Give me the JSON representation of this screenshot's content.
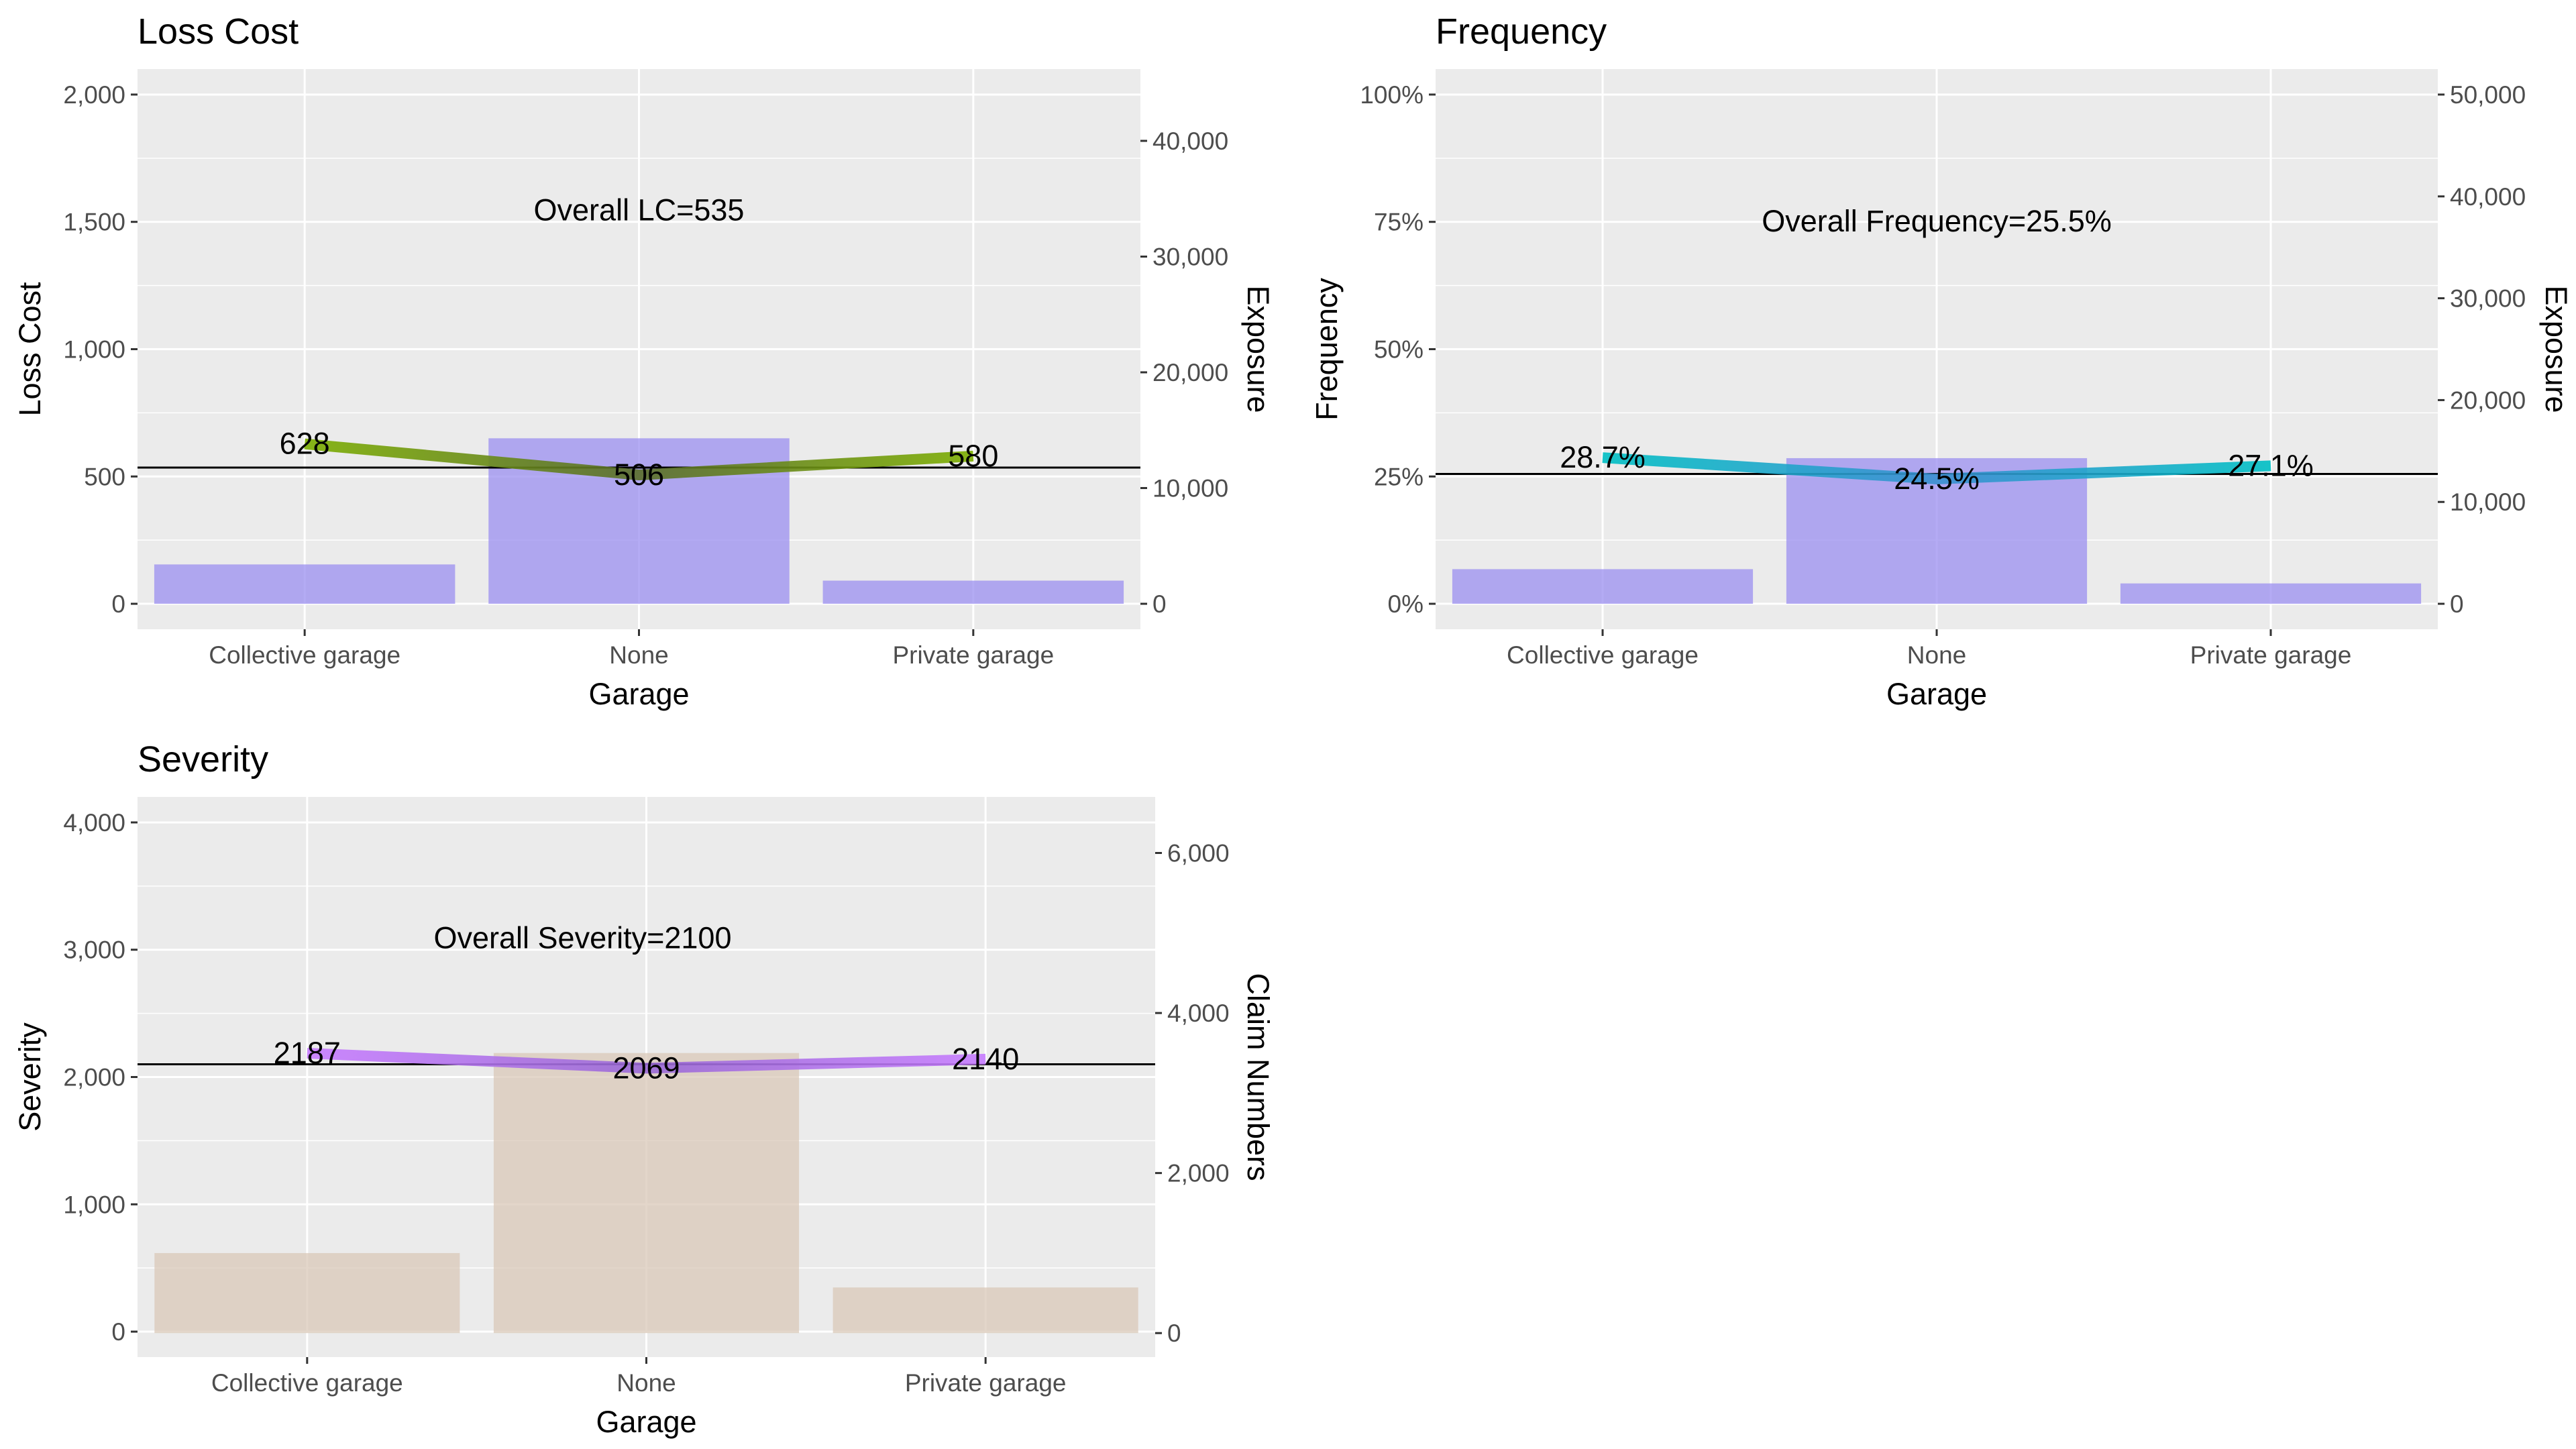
{
  "charts": [
    {
      "id": "loss-cost",
      "type": "bar+line",
      "title": "Loss Cost",
      "xlabel": "Garage",
      "ylabel": "Loss Cost",
      "y2label": "Exposure",
      "categories": [
        "Collective garage",
        "None",
        "Private garage"
      ],
      "ylim": [
        -100,
        2100
      ],
      "yticks": [
        0,
        500,
        1000,
        1500,
        2000
      ],
      "ytick_labels": [
        "0",
        "500",
        "1,000",
        "1,500",
        "2,000"
      ],
      "y2lim": [
        -2200,
        46200
      ],
      "y2ticks": [
        0,
        10000,
        20000,
        30000,
        40000
      ],
      "y2tick_labels": [
        "0",
        "10,000",
        "20,000",
        "30,000",
        "40,000"
      ],
      "bars": [
        3400,
        14300,
        2000
      ],
      "line": [
        628,
        506,
        580
      ],
      "line_labels": [
        "628",
        "506",
        "580"
      ],
      "overall": 535,
      "overall_label": "Overall LC=535",
      "colors": {
        "bar": "#9b8ff0",
        "line_start": "#7cae00",
        "line_end": "#5a6e2a"
      }
    },
    {
      "id": "frequency",
      "type": "bar+line",
      "title": "Frequency",
      "xlabel": "Garage",
      "ylabel": "Frequency",
      "y2label": "Exposure",
      "categories": [
        "Collective garage",
        "None",
        "Private garage"
      ],
      "ylim": [
        -0.05,
        1.05
      ],
      "yticks": [
        0,
        0.25,
        0.5,
        0.75,
        1.0
      ],
      "ytick_labels": [
        "0%",
        "25%",
        "50%",
        "75%",
        "100%"
      ],
      "y2lim": [
        -2500,
        52500
      ],
      "y2ticks": [
        0,
        10000,
        20000,
        30000,
        40000,
        50000
      ],
      "y2tick_labels": [
        "0",
        "10,000",
        "20,000",
        "30,000",
        "40,000",
        "50,000"
      ],
      "bars": [
        3400,
        14300,
        2000
      ],
      "line": [
        0.287,
        0.245,
        0.271
      ],
      "line_labels": [
        "28.7%",
        "24.5%",
        "27.1%"
      ],
      "overall": 0.255,
      "overall_label": "Overall Frequency=25.5%",
      "colors": {
        "bar": "#9b8ff0",
        "line_start": "#00bfc4",
        "line_end": "#3a8fd0"
      }
    },
    {
      "id": "severity",
      "type": "bar+line",
      "title": "Severity",
      "xlabel": "Garage",
      "ylabel": "Severity",
      "y2label": "Claim Numbers",
      "categories": [
        "Collective garage",
        "None",
        "Private garage"
      ],
      "ylim": [
        -200,
        4200
      ],
      "yticks": [
        0,
        1000,
        2000,
        3000,
        4000
      ],
      "ytick_labels": [
        "0",
        "1,000",
        "2,000",
        "3,000",
        "4,000"
      ],
      "y2lim": [
        -300,
        6700
      ],
      "y2ticks": [
        0,
        2000,
        4000,
        6000
      ],
      "y2tick_labels": [
        "0",
        "2,000",
        "4,000",
        "6,000"
      ],
      "bars": [
        1000,
        3500,
        570
      ],
      "line": [
        2187,
        2069,
        2140
      ],
      "line_labels": [
        "2187",
        "2069",
        "2140"
      ],
      "overall": 2100,
      "overall_label": "Overall Severity=2100",
      "colors": {
        "bar": "#d9c8b8",
        "line_start": "#c77cff",
        "line_end": "#9a6ad6"
      }
    }
  ]
}
